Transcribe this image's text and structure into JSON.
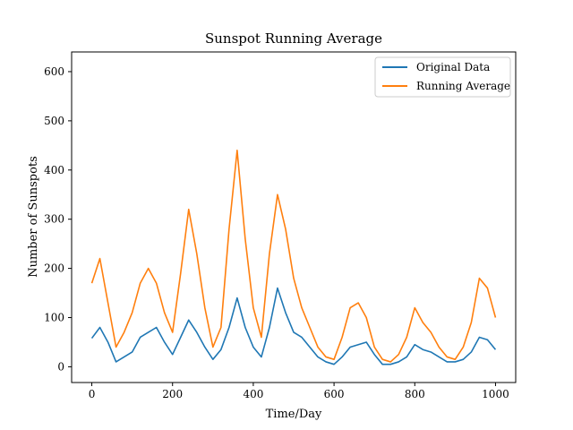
{
  "chart_data": {
    "type": "line",
    "title": "Sunspot Running Average",
    "xlabel": "Time/Day",
    "ylabel": "Number of Sunspots",
    "xlim": [
      -50,
      1050
    ],
    "ylim": [
      -32,
      640
    ],
    "xticks": [
      0,
      200,
      400,
      600,
      800,
      1000
    ],
    "yticks": [
      0,
      100,
      200,
      300,
      400,
      500,
      600
    ],
    "legend_position": "top-right",
    "grid": false,
    "x": [
      0,
      20,
      40,
      60,
      80,
      100,
      120,
      140,
      160,
      180,
      200,
      220,
      240,
      260,
      280,
      300,
      320,
      340,
      360,
      380,
      400,
      420,
      440,
      460,
      480,
      500,
      520,
      540,
      560,
      580,
      600,
      620,
      640,
      660,
      680,
      700,
      720,
      740,
      760,
      780,
      800,
      820,
      840,
      860,
      880,
      900,
      920,
      940,
      960,
      980,
      1000
    ],
    "series": [
      {
        "name": "Original Data",
        "color": "#1f77b4",
        "values": [
          58,
          80,
          50,
          10,
          20,
          30,
          60,
          70,
          80,
          50,
          25,
          60,
          95,
          70,
          40,
          15,
          35,
          80,
          140,
          80,
          40,
          20,
          80,
          160,
          110,
          70,
          60,
          40,
          20,
          10,
          5,
          20,
          40,
          45,
          50,
          25,
          5,
          5,
          10,
          20,
          45,
          35,
          30,
          20,
          10,
          10,
          15,
          30,
          60,
          55,
          35
        ]
      },
      {
        "name": "Running Average",
        "color": "#ff7f0e",
        "values": [
          170,
          220,
          130,
          40,
          70,
          110,
          170,
          200,
          170,
          110,
          70,
          190,
          320,
          230,
          120,
          40,
          80,
          280,
          440,
          260,
          120,
          60,
          230,
          350,
          280,
          180,
          120,
          80,
          40,
          20,
          15,
          60,
          120,
          130,
          100,
          40,
          15,
          10,
          25,
          60,
          120,
          90,
          70,
          40,
          20,
          15,
          40,
          90,
          180,
          160,
          100
        ]
      }
    ]
  }
}
